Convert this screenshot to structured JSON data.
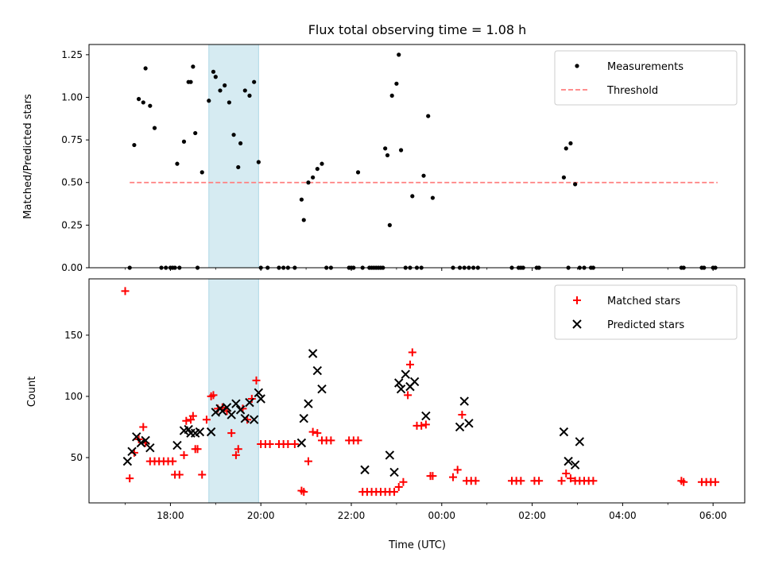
{
  "chart_data": {
    "title": "Flux total observing time = 1.08 h",
    "x_axis": {
      "label": "Time (UTC)",
      "unit": "hours since 00:00 of first day",
      "range": [
        16.2,
        30.7
      ],
      "ticks": [
        {
          "value": 18,
          "label": "18:00"
        },
        {
          "value": 20,
          "label": "20:00"
        },
        {
          "value": 22,
          "label": "22:00"
        },
        {
          "value": 24,
          "label": "00:00"
        },
        {
          "value": 26,
          "label": "02:00"
        },
        {
          "value": 28,
          "label": "04:00"
        },
        {
          "value": 30,
          "label": "06:00"
        }
      ]
    },
    "highlight_band": {
      "x_start": 18.85,
      "x_end": 19.95,
      "color": "#add8e6"
    },
    "panels": [
      {
        "id": "ratio",
        "type": "scatter",
        "ylabel": "Matched/Predicted stars",
        "ylim": [
          0,
          1.31
        ],
        "yticks": [
          {
            "value": 0,
            "label": "0.00"
          },
          {
            "value": 0.25,
            "label": "0.25"
          },
          {
            "value": 0.5,
            "label": "0.50"
          },
          {
            "value": 0.75,
            "label": "0.75"
          },
          {
            "value": 1.0,
            "label": "1.00"
          },
          {
            "value": 1.25,
            "label": "1.25"
          }
        ],
        "legend": {
          "position": "top-right",
          "entries": [
            {
              "label": "Measurements",
              "marker": "dot",
              "color": "#000000"
            },
            {
              "label": "Threshold",
              "marker": "dashed-line",
              "color": "#ff7f7f"
            }
          ]
        },
        "threshold": {
          "y": 0.5,
          "x_start": 17.1,
          "x_end": 30.1
        },
        "measurements": {
          "x": [
            17.1,
            17.2,
            17.3,
            17.4,
            17.45,
            17.55,
            17.65,
            17.8,
            17.9,
            18.0,
            18.05,
            18.1,
            18.15,
            18.2,
            18.3,
            18.4,
            18.45,
            18.5,
            18.55,
            18.6,
            18.7,
            18.85,
            18.95,
            19.0,
            19.1,
            19.2,
            19.3,
            19.4,
            19.5,
            19.55,
            19.65,
            19.75,
            19.85,
            19.95,
            20.0,
            20.15,
            20.4,
            20.5,
            20.6,
            20.75,
            20.9,
            20.95,
            21.05,
            21.15,
            21.25,
            21.35,
            21.45,
            21.55,
            21.95,
            22.0,
            22.05,
            22.15,
            22.25,
            22.4,
            22.45,
            22.5,
            22.55,
            22.6,
            22.65,
            22.7,
            22.75,
            22.8,
            22.85,
            22.9,
            23.0,
            23.05,
            23.1,
            23.2,
            23.3,
            23.35,
            23.45,
            23.55,
            23.6,
            23.7,
            23.8,
            24.25,
            24.4,
            24.5,
            24.6,
            24.7,
            24.8,
            25.55,
            25.7,
            25.75,
            25.8,
            26.1,
            26.15,
            26.7,
            26.75,
            26.8,
            26.85,
            26.95,
            27.05,
            27.15,
            27.3,
            27.35,
            29.3,
            29.35,
            29.75,
            29.8,
            30.0,
            30.05
          ],
          "y": [
            0.0,
            0.72,
            0.99,
            0.97,
            1.17,
            0.95,
            0.82,
            0.0,
            0.0,
            0.0,
            0.0,
            0.0,
            0.61,
            0.0,
            0.74,
            1.09,
            1.09,
            1.18,
            0.79,
            0.0,
            0.56,
            0.98,
            1.15,
            1.12,
            1.04,
            1.07,
            0.97,
            0.78,
            0.59,
            0.73,
            1.04,
            1.01,
            1.09,
            0.62,
            0.0,
            0.0,
            0.0,
            0.0,
            0.0,
            0.0,
            0.4,
            0.28,
            0.5,
            0.53,
            0.58,
            0.61,
            0.0,
            0.0,
            0.0,
            0.0,
            0.0,
            0.56,
            0.0,
            0.0,
            0.0,
            0.0,
            0.0,
            0.0,
            0.0,
            0.0,
            0.7,
            0.66,
            0.25,
            1.01,
            1.08,
            1.25,
            0.69,
            0.0,
            0.0,
            0.42,
            0.0,
            0.0,
            0.54,
            0.89,
            0.41,
            0.0,
            0.0,
            0.0,
            0.0,
            0.0,
            0.0,
            0.0,
            0.0,
            0.0,
            0.0,
            0.0,
            0.0,
            0.53,
            0.7,
            0.0,
            0.73,
            0.49,
            0.0,
            0.0,
            0.0,
            0.0,
            0.0,
            0.0,
            0.0,
            0.0,
            0.0,
            0.0
          ]
        }
      },
      {
        "id": "counts",
        "type": "scatter",
        "ylabel": "Count",
        "xlabel": "Time (UTC)",
        "ylim": [
          13,
          196
        ],
        "yticks": [
          {
            "value": 50,
            "label": "50"
          },
          {
            "value": 100,
            "label": "100"
          },
          {
            "value": 150,
            "label": "150"
          }
        ],
        "legend": {
          "position": "top-right",
          "entries": [
            {
              "label": "Matched stars",
              "marker": "plus",
              "color": "#ff0000"
            },
            {
              "label": "Predicted stars",
              "marker": "cross",
              "color": "#000000"
            }
          ]
        },
        "series": [
          {
            "name": "Matched stars",
            "marker": "plus",
            "color": "#ff0000",
            "x": [
              17.0,
              17.1,
              17.2,
              17.3,
              17.4,
              17.45,
              17.55,
              17.65,
              17.75,
              17.85,
              17.95,
              18.05,
              18.1,
              18.2,
              18.3,
              18.35,
              18.45,
              18.5,
              18.55,
              18.6,
              18.7,
              18.8,
              18.9,
              18.95,
              19.05,
              19.15,
              19.25,
              19.35,
              19.45,
              19.5,
              19.6,
              19.7,
              19.8,
              19.9,
              20.0,
              20.1,
              20.2,
              20.4,
              20.5,
              20.6,
              20.75,
              20.9,
              20.95,
              21.05,
              21.15,
              21.25,
              21.35,
              21.45,
              21.55,
              21.95,
              22.05,
              22.15,
              22.25,
              22.35,
              22.45,
              22.55,
              22.65,
              22.75,
              22.85,
              22.95,
              23.05,
              23.15,
              23.25,
              23.3,
              23.35,
              23.45,
              23.55,
              23.65,
              23.75,
              23.8,
              24.25,
              24.35,
              24.45,
              24.55,
              24.65,
              24.75,
              25.55,
              25.65,
              25.75,
              26.05,
              26.15,
              26.65,
              26.75,
              26.85,
              26.95,
              27.05,
              27.15,
              27.25,
              27.35,
              29.3,
              29.35,
              29.75,
              29.85,
              29.95,
              30.05
            ],
            "y": [
              186,
              33,
              54,
              65,
              75,
              62,
              47,
              47,
              47,
              47,
              47,
              47,
              36,
              36,
              52,
              80,
              81,
              84,
              57,
              57,
              36,
              81,
              100,
              101,
              90,
              91,
              88,
              70,
              52,
              57,
              90,
              81,
              98,
              113,
              61,
              61,
              61,
              61,
              61,
              61,
              61,
              23,
              22,
              47,
              71,
              70,
              64,
              64,
              64,
              64,
              64,
              64,
              22,
              22,
              22,
              22,
              22,
              22,
              22,
              22,
              26,
              30,
              101,
              126,
              136,
              76,
              76,
              77,
              35,
              35,
              34,
              40,
              85,
              31,
              31,
              31,
              31,
              31,
              31,
              31,
              31,
              31,
              37,
              33,
              31,
              31,
              31,
              31,
              31,
              31,
              30,
              30,
              30,
              30,
              30
            ],
            "count": 95
          },
          {
            "name": "Predicted stars",
            "marker": "cross",
            "color": "#000000",
            "x": [
              17.05,
              17.15,
              17.25,
              17.35,
              17.45,
              17.55,
              18.15,
              18.3,
              18.4,
              18.45,
              18.55,
              18.65,
              18.9,
              19.0,
              19.1,
              19.15,
              19.25,
              19.35,
              19.45,
              19.55,
              19.65,
              19.75,
              19.85,
              19.95,
              20.0,
              20.9,
              20.95,
              21.05,
              21.15,
              21.25,
              21.35,
              22.3,
              22.85,
              22.95,
              23.05,
              23.1,
              23.2,
              23.3,
              23.4,
              23.65,
              24.4,
              24.5,
              24.6,
              26.7,
              26.8,
              26.95,
              27.05
            ],
            "y": [
              47,
              55,
              67,
              62,
              64,
              58,
              60,
              72,
              73,
              70,
              70,
              71,
              71,
              87,
              90,
              88,
              91,
              85,
              94,
              89,
              82,
              95,
              81,
              103,
              98,
              62,
              82,
              94,
              135,
              121,
              106,
              40,
              52,
              38,
              111,
              106,
              118,
              108,
              112,
              84,
              75,
              96,
              78,
              71,
              47,
              44,
              63
            ],
            "count": 47
          }
        ]
      }
    ]
  }
}
